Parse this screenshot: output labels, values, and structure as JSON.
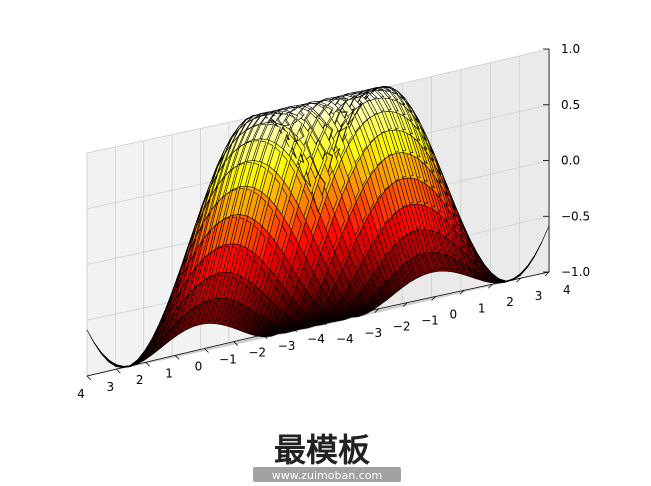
{
  "chart_data": {
    "type": "surface",
    "title": "",
    "function": "sin(sqrt(x^2 + y^2))",
    "colormap": "hot",
    "grid": true,
    "x": {
      "range": [
        -4,
        4
      ],
      "ticks": [
        "−4",
        "−3",
        "−2",
        "−1",
        "0",
        "1",
        "2",
        "3",
        "4"
      ]
    },
    "y": {
      "range": [
        -4,
        4
      ],
      "ticks": [
        "−4",
        "−3",
        "−2",
        "−1",
        "0",
        "1",
        "2",
        "3",
        "4"
      ]
    },
    "z": {
      "range": [
        -1,
        1
      ],
      "ticks": [
        "−1.0",
        "−0.5",
        "0.0",
        "0.5",
        "1.0"
      ]
    }
  },
  "watermark": {
    "logo_text": "最模板",
    "url": "www.zuimoban.com"
  }
}
